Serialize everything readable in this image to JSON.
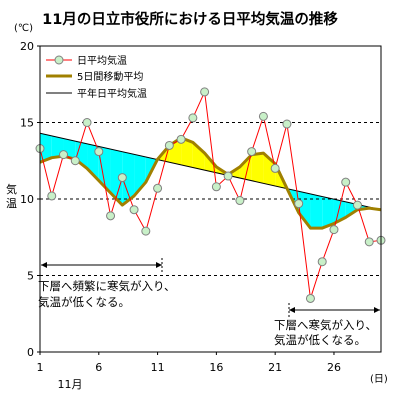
{
  "chart_data": {
    "type": "line",
    "title": "11月の日立市役所における日平均気温の推移",
    "y_unit": "(℃)",
    "y_axis_title": "気温",
    "x_axis_unit": "(日)",
    "x_axis_month": "11月",
    "ylim": [
      0,
      20
    ],
    "yticks": [
      0,
      5,
      10,
      15,
      20
    ],
    "xlim": [
      1,
      30
    ],
    "xticks": [
      1,
      6,
      11,
      16,
      21,
      26
    ],
    "grid": "horizontal-dashed",
    "legend_position": "top-left",
    "colors": {
      "daily": "#ff0000",
      "daily_marker_fill": "#c8f0c8",
      "daily_marker_stroke": "#808080",
      "moving": "#a08000",
      "normal": "#000000",
      "fill_below_normal": "#00ffff",
      "fill_above_normal": "#ffff00"
    },
    "series": [
      {
        "name": "日平均気温",
        "x": [
          1,
          2,
          3,
          4,
          5,
          6,
          7,
          8,
          9,
          10,
          11,
          12,
          13,
          14,
          15,
          16,
          17,
          18,
          19,
          20,
          21,
          22,
          23,
          24,
          25,
          26,
          27,
          28,
          29,
          30
        ],
        "values": [
          13.3,
          10.2,
          12.9,
          12.5,
          15.0,
          13.1,
          8.9,
          11.4,
          9.3,
          7.9,
          10.7,
          13.5,
          13.9,
          15.3,
          17.0,
          10.8,
          11.5,
          9.9,
          13.1,
          15.4,
          12.0,
          14.9,
          9.7,
          3.5,
          5.9,
          8.0,
          11.1,
          9.6,
          7.2,
          7.3
        ]
      },
      {
        "name": "5日間移動平均",
        "x": [
          1,
          2,
          3,
          4,
          5,
          6,
          7,
          8,
          9,
          10,
          11,
          12,
          13,
          14,
          15,
          16,
          17,
          18,
          19,
          20,
          21,
          22,
          23,
          24,
          25,
          26,
          27,
          28,
          29,
          30
        ],
        "values": [
          12.4,
          12.7,
          12.8,
          12.6,
          12.0,
          11.2,
          10.4,
          9.6,
          10.2,
          11.1,
          12.6,
          13.5,
          14.0,
          13.7,
          13.0,
          12.1,
          11.6,
          12.1,
          12.9,
          13.0,
          12.3,
          10.7,
          9.1,
          8.1,
          8.1,
          8.4,
          8.8,
          9.3,
          9.4,
          9.3
        ]
      },
      {
        "name": "平年日平均気温",
        "x": [
          1,
          30
        ],
        "values": [
          14.3,
          9.3
        ]
      }
    ],
    "annotations": [
      {
        "text_lines": [
          "下層へ頻繁に寒気が入り、",
          "気温が低くなる。"
        ],
        "x_range": [
          1,
          11
        ]
      },
      {
        "text_lines": [
          "下層へ寒気が入り、",
          "気温が低くなる。"
        ],
        "x_range": [
          22,
          30
        ]
      }
    ]
  }
}
